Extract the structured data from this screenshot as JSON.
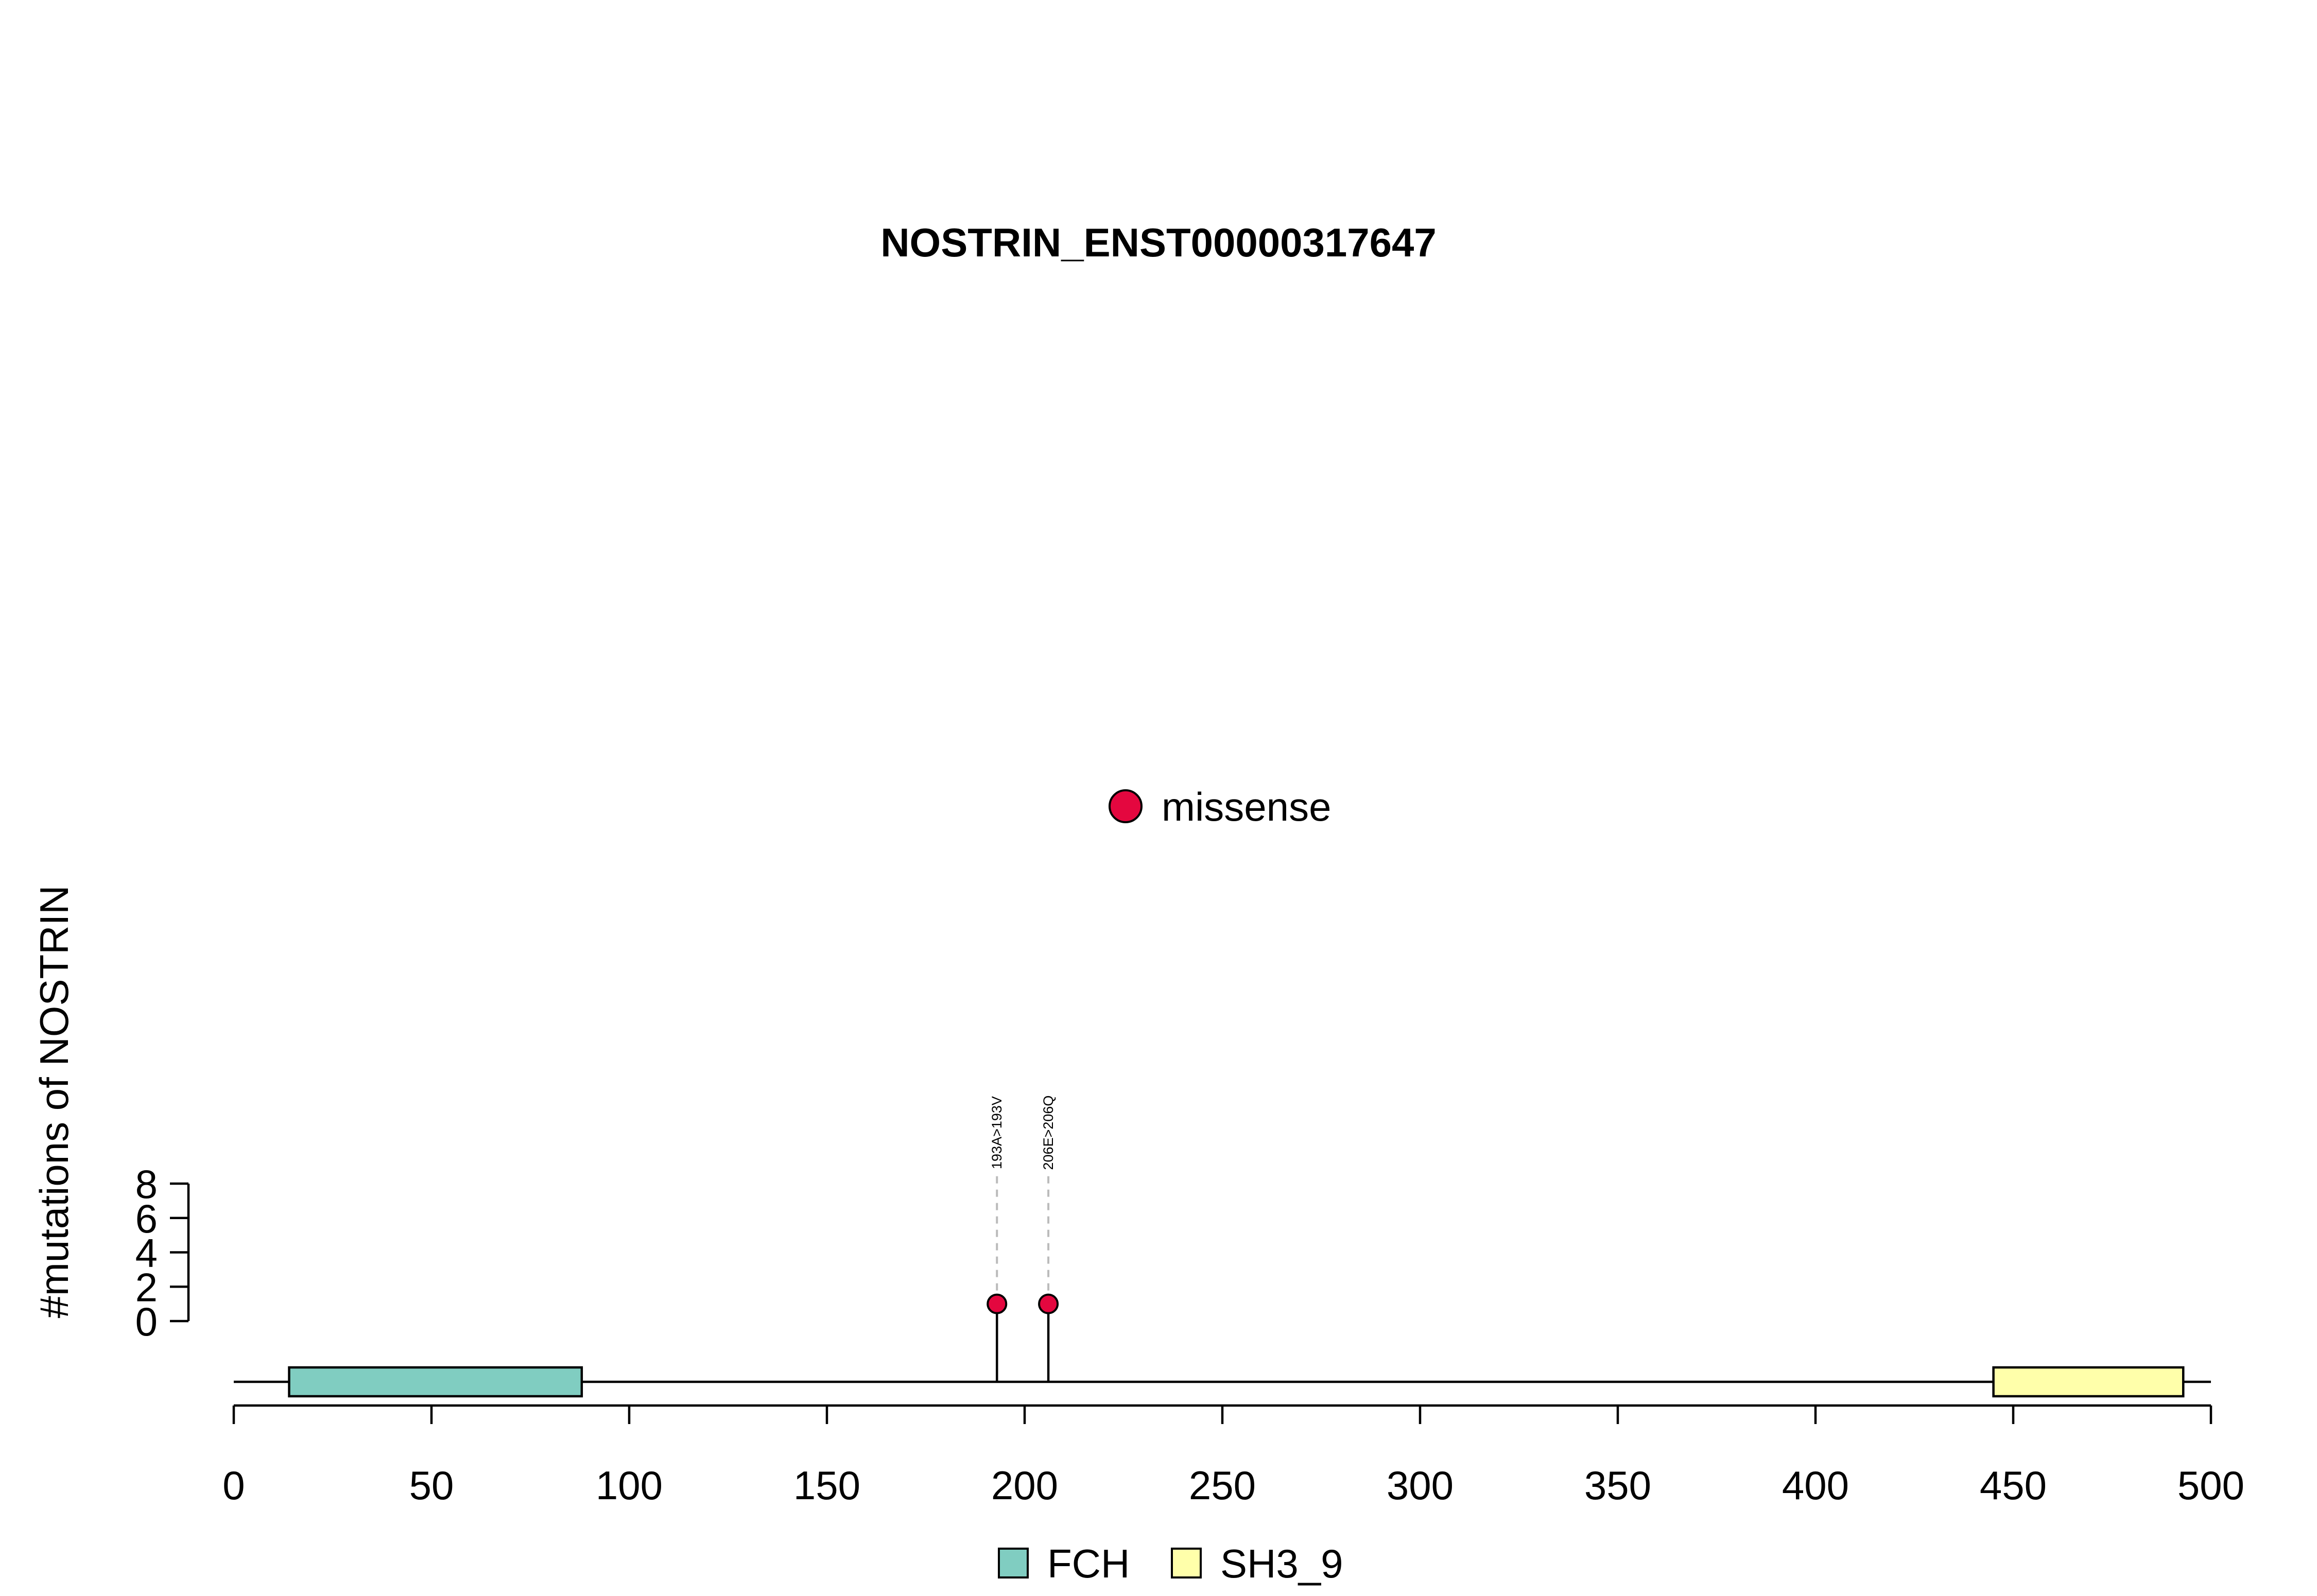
{
  "chart_data": {
    "type": "lollipop",
    "title": "NOSTRIN_ENST00000317647",
    "xlabel": "",
    "ylabel": "#mutations of NOSTRIN",
    "xlim": [
      0,
      500
    ],
    "ylim": [
      0,
      8
    ],
    "x_ticks": [
      "0",
      "50",
      "100",
      "150",
      "200",
      "250",
      "300",
      "350",
      "400",
      "450",
      "500"
    ],
    "y_ticks": [
      "0",
      "2",
      "4",
      "6",
      "8"
    ],
    "grid": false,
    "mutation_legend": [
      {
        "label": "missense",
        "color": "#e4073f"
      }
    ],
    "mutations": [
      {
        "position": 193,
        "count": 1,
        "label": "193A>193V",
        "type": "missense",
        "color": "#e4073f"
      },
      {
        "position": 206,
        "count": 1,
        "label": "206E>206Q",
        "type": "missense",
        "color": "#e4073f"
      }
    ],
    "domains": [
      {
        "name": "FCH",
        "start": 14,
        "end": 88,
        "color": "#80cdc1"
      },
      {
        "name": "SH3_9",
        "start": 445,
        "end": 493,
        "color": "#ffffaa"
      }
    ],
    "domain_legend": [
      {
        "label": "FCH",
        "color": "#80cdc1"
      },
      {
        "label": "SH3_9",
        "color": "#ffffaa"
      }
    ]
  }
}
